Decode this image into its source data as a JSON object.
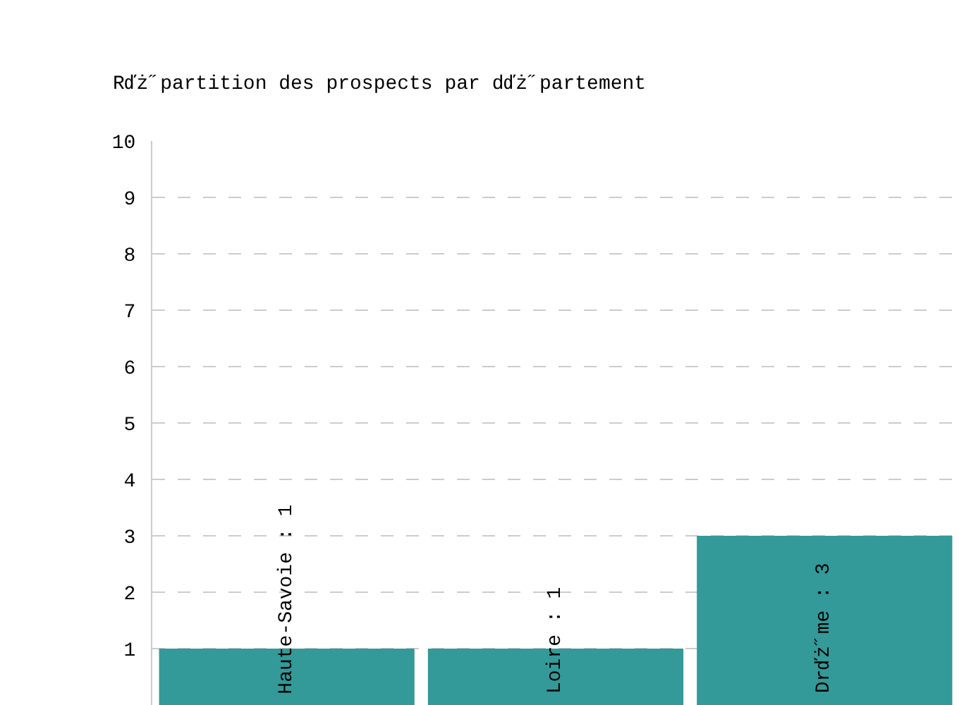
{
  "chart_data": {
    "type": "bar",
    "title": "Rďż˝partition des prospects par dďż˝partement",
    "categories": [
      "Haute-Savoie : 1",
      "Loire : 1",
      "Drďż˝me : 3"
    ],
    "values": [
      1,
      1,
      3
    ],
    "color": "#339999",
    "ylim": [
      0,
      10
    ],
    "yticks": [
      1,
      2,
      3,
      4,
      5,
      6,
      7,
      8,
      9,
      10
    ],
    "grid": "y",
    "tick_labels": "y"
  }
}
